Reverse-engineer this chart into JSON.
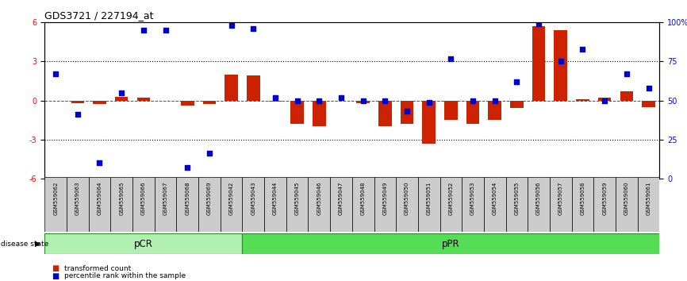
{
  "title": "GDS3721 / 227194_at",
  "samples": [
    "GSM559062",
    "GSM559063",
    "GSM559064",
    "GSM559065",
    "GSM559066",
    "GSM559067",
    "GSM559068",
    "GSM559069",
    "GSM559042",
    "GSM559043",
    "GSM559044",
    "GSM559045",
    "GSM559046",
    "GSM559047",
    "GSM559048",
    "GSM559049",
    "GSM559050",
    "GSM559051",
    "GSM559052",
    "GSM559053",
    "GSM559054",
    "GSM559055",
    "GSM559056",
    "GSM559057",
    "GSM559058",
    "GSM559059",
    "GSM559060",
    "GSM559061"
  ],
  "transformed_count": [
    -0.05,
    -0.2,
    -0.3,
    0.3,
    0.2,
    -0.05,
    -0.4,
    -0.3,
    2.0,
    1.9,
    -0.1,
    -1.8,
    -2.0,
    -0.05,
    -0.2,
    -2.0,
    -1.8,
    -3.3,
    -1.5,
    -1.8,
    -1.5,
    -0.6,
    5.7,
    5.4,
    0.1,
    0.2,
    0.7,
    -0.5
  ],
  "percentile_rank_pct": [
    67,
    41,
    10,
    55,
    95,
    95,
    7,
    16,
    98,
    96,
    52,
    50,
    50,
    52,
    50,
    50,
    43,
    49,
    77,
    50,
    50,
    62,
    99,
    75,
    83,
    50,
    67,
    58
  ],
  "pcr_count": 9,
  "group_labels": [
    "pCR",
    "pPR"
  ],
  "pcr_color": "#b2f0b2",
  "ppr_color": "#55dd55",
  "group_border_color": "#228B22",
  "bar_color": "#cc2200",
  "dot_color": "#0000cc",
  "zero_line_color": "#cc2200",
  "grid_color": "#000000",
  "ylim": [
    -6,
    6
  ],
  "legend_items": [
    "transformed count",
    "percentile rank within the sample"
  ]
}
